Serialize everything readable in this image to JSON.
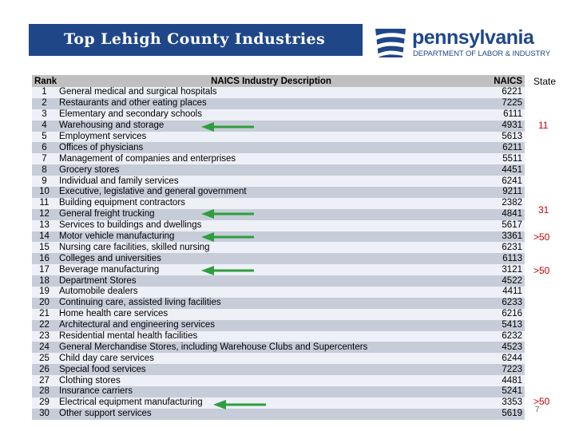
{
  "title": "Top Lehigh County Industries",
  "logo": {
    "name": "pennsylvania",
    "department": "DEPARTMENT OF LABOR & INDUSTRY"
  },
  "table": {
    "headers": {
      "rank": "Rank",
      "description": "NAICS Industry Description",
      "naics": "NAICS"
    },
    "rows": [
      {
        "rank": "1",
        "description": "General medical and surgical hospitals",
        "naics": "6221"
      },
      {
        "rank": "2",
        "description": "Restaurants and other eating places",
        "naics": "7225"
      },
      {
        "rank": "3",
        "description": "Elementary and secondary schools",
        "naics": "6111"
      },
      {
        "rank": "4",
        "description": "Warehousing and storage",
        "naics": "4931"
      },
      {
        "rank": "5",
        "description": "Employment services",
        "naics": "5613"
      },
      {
        "rank": "6",
        "description": "Offices of physicians",
        "naics": "6211"
      },
      {
        "rank": "7",
        "description": "Management of companies and enterprises",
        "naics": "5511"
      },
      {
        "rank": "8",
        "description": "Grocery stores",
        "naics": "4451"
      },
      {
        "rank": "9",
        "description": "Individual and family services",
        "naics": "6241"
      },
      {
        "rank": "10",
        "description": "Executive, legislative and general government",
        "naics": "9211"
      },
      {
        "rank": "11",
        "description": "Building equipment contractors",
        "naics": "2382"
      },
      {
        "rank": "12",
        "description": "General freight trucking",
        "naics": "4841"
      },
      {
        "rank": "13",
        "description": "Services to buildings and dwellings",
        "naics": "5617"
      },
      {
        "rank": "14",
        "description": "Motor vehicle manufacturing",
        "naics": "3361"
      },
      {
        "rank": "15",
        "description": "Nursing care facilities, skilled nursing",
        "naics": "6231"
      },
      {
        "rank": "16",
        "description": "Colleges and universities",
        "naics": "6113"
      },
      {
        "rank": "17",
        "description": "Beverage manufacturing",
        "naics": "3121"
      },
      {
        "rank": "18",
        "description": "Department Stores",
        "naics": "4522"
      },
      {
        "rank": "19",
        "description": "Automobile dealers",
        "naics": "4411"
      },
      {
        "rank": "20",
        "description": "Continuing care, assisted living facilities",
        "naics": "6233"
      },
      {
        "rank": "21",
        "description": "Home health care services",
        "naics": "6216"
      },
      {
        "rank": "22",
        "description": "Architectural and engineering services",
        "naics": "5413"
      },
      {
        "rank": "23",
        "description": "Residential mental health facilities",
        "naics": "6232"
      },
      {
        "rank": "24",
        "description": "General Merchandise Stores, including Warehouse Clubs and Supercenters",
        "naics": "4523"
      },
      {
        "rank": "25",
        "description": "Child day care services",
        "naics": "6244"
      },
      {
        "rank": "26",
        "description": "Special food services",
        "naics": "7223"
      },
      {
        "rank": "27",
        "description": "Clothing stores",
        "naics": "4481"
      },
      {
        "rank": "28",
        "description": "Insurance carriers",
        "naics": "5241"
      },
      {
        "rank": "29",
        "description": "Electrical equipment manufacturing",
        "naics": "3353"
      },
      {
        "rank": "30",
        "description": "Other support services",
        "naics": "5619"
      }
    ]
  },
  "state": {
    "label": "State",
    "values": [
      "11",
      "31",
      ">50",
      ">50",
      ">50"
    ],
    "color": "#cc0000"
  },
  "arrow_color": "#2e9e3e",
  "page_number": "7"
}
